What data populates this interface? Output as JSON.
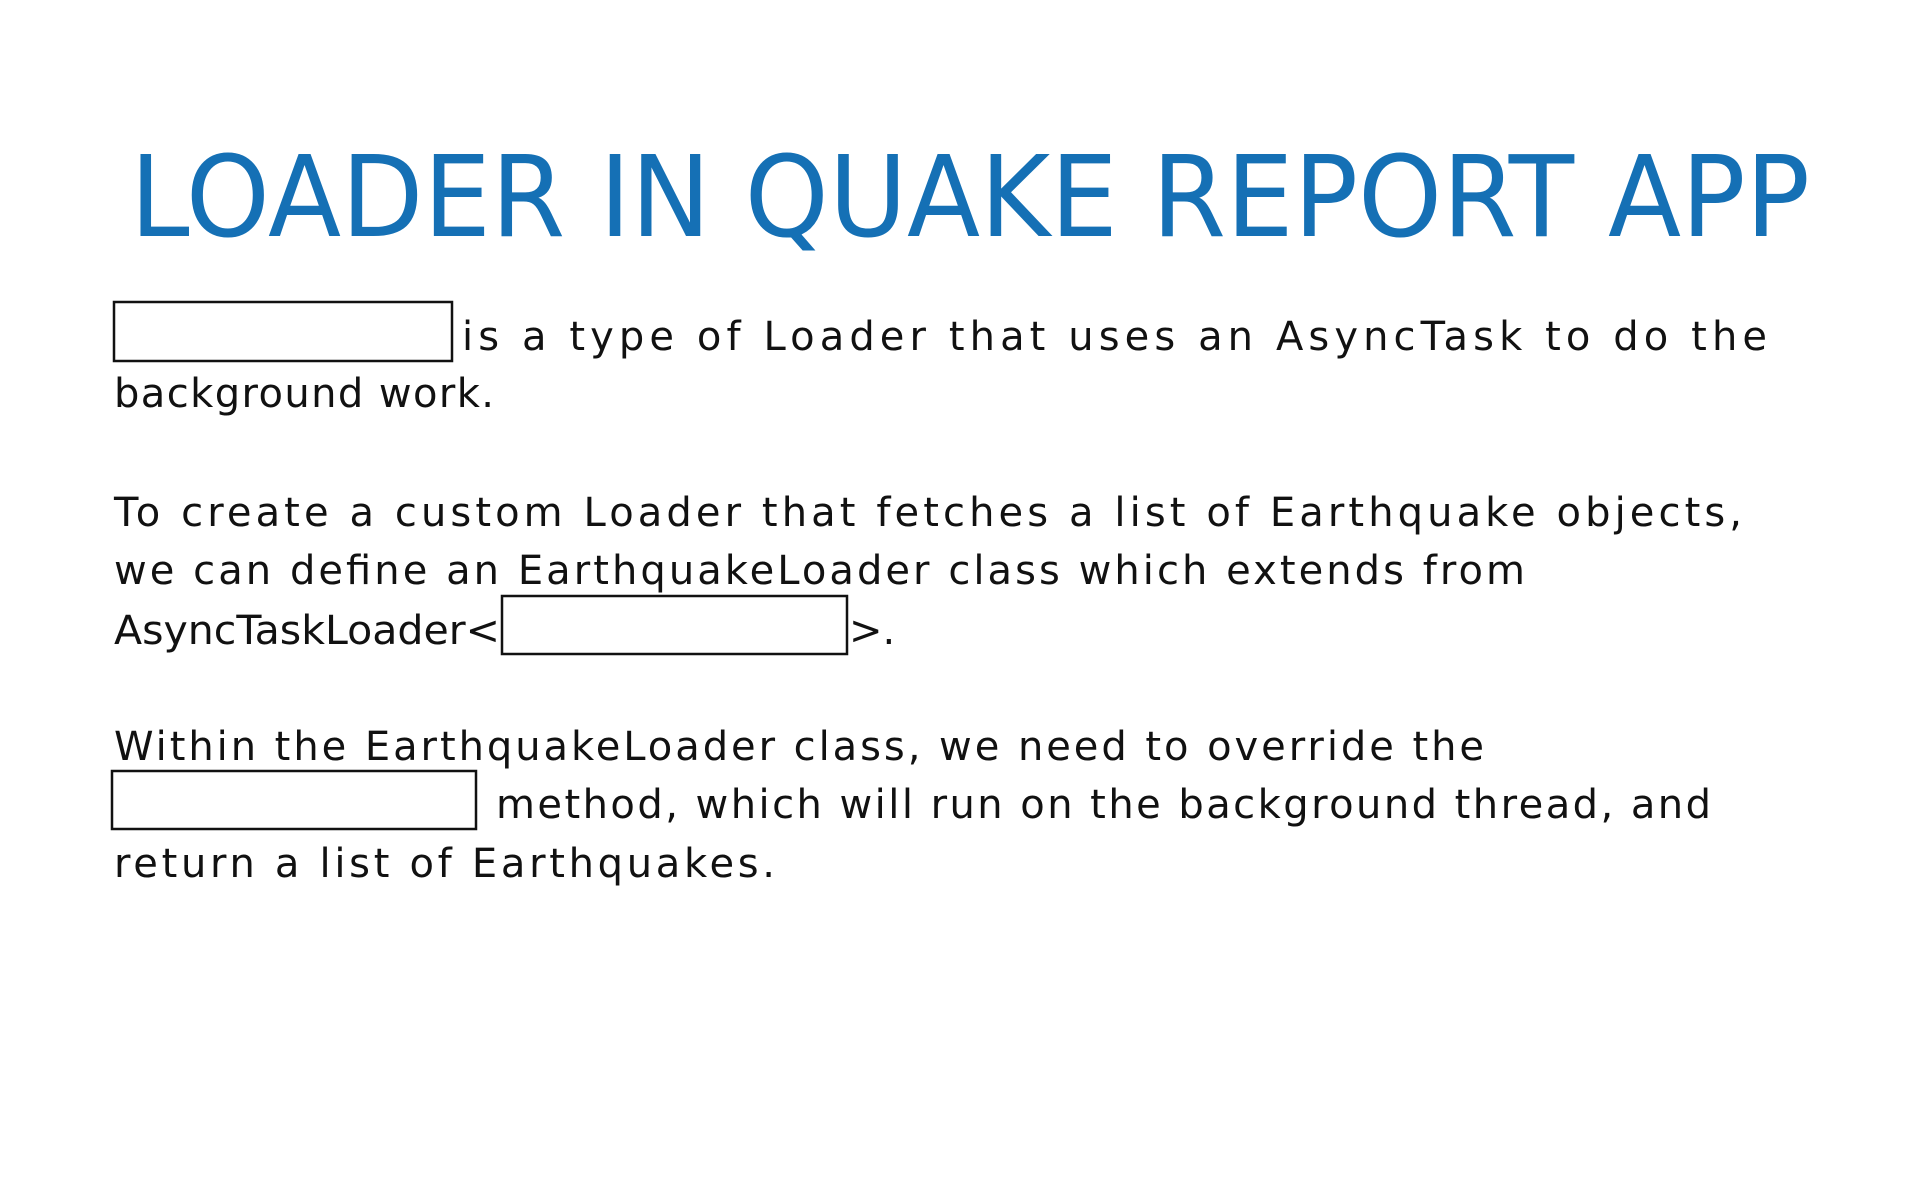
{
  "header": {
    "title": "LOADER IN QUAKE REPORT APP"
  },
  "paragraphs": [
    {
      "lines": [
        "is a type of Loader that uses an AsyncTask to do the",
        "background work."
      ]
    },
    {
      "lines": [
        "To create a custom Loader that fetches a list of Earthquake objects,",
        "we can define an EarthquakeLoader class which extends from",
        "AsyncTaskLoader<",
        ">."
      ]
    },
    {
      "lines": [
        "Within the EarthquakeLoader class, we need to override the",
        "method, which will run on the background thread, and",
        "return a list of Earthquakes."
      ]
    }
  ]
}
